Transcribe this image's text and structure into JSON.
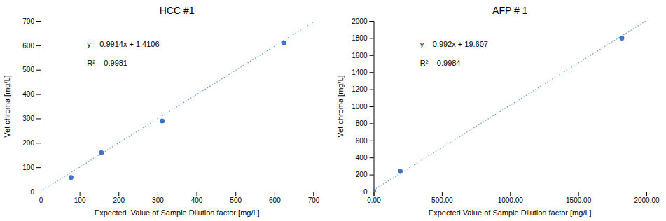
{
  "chart_data": [
    {
      "type": "scatter",
      "title": "HCC #1",
      "x": [
        78,
        156,
        312,
        624
      ],
      "values": [
        58,
        160,
        290,
        610
      ],
      "color": "#4472C4",
      "trendline": {
        "slope": 0.9914,
        "intercept": 1.4106,
        "color": "#5B9BD5"
      },
      "annotations": [
        "y = 0.9914x + 1.4106",
        "R² = 0.9981"
      ],
      "xlabel": "Expected  Value of Sample Dilution factor [mg/L]",
      "ylabel": "Vet chroma [mg/L]",
      "xlim": [
        0,
        700
      ],
      "ylim": [
        0,
        700
      ],
      "xticks": [
        0,
        100,
        200,
        300,
        400,
        500,
        600,
        700
      ],
      "yticks": [
        0,
        100,
        200,
        300,
        400,
        500,
        600,
        700
      ],
      "grid": false
    },
    {
      "type": "scatter",
      "title": "AFP # 1",
      "x": [
        0,
        195,
        1820
      ],
      "values": [
        10,
        240,
        1800
      ],
      "color": "#4472C4",
      "trendline": {
        "slope": 0.992,
        "intercept": 19.607,
        "color": "#5B9BD5"
      },
      "annotations": [
        "y = 0.992x + 19.607",
        "R² = 0.9984"
      ],
      "xlabel": "Expected Value of Sample Dilution factor [mg/L]",
      "ylabel": "Vet chroma [mg/L]",
      "xlim": [
        0,
        2000
      ],
      "ylim": [
        0,
        2000
      ],
      "xticks": [
        {
          "value": 0,
          "label": "0.00"
        },
        {
          "value": 500,
          "label": "500.00"
        },
        {
          "value": 1000,
          "label": "1000.00"
        },
        {
          "value": 1500,
          "label": "1500.00"
        },
        {
          "value": 2000,
          "label": "2000.00"
        }
      ],
      "yticks": [
        0,
        200,
        400,
        600,
        800,
        1000,
        1200,
        1400,
        1600,
        1800,
        2000
      ],
      "grid": false
    }
  ]
}
